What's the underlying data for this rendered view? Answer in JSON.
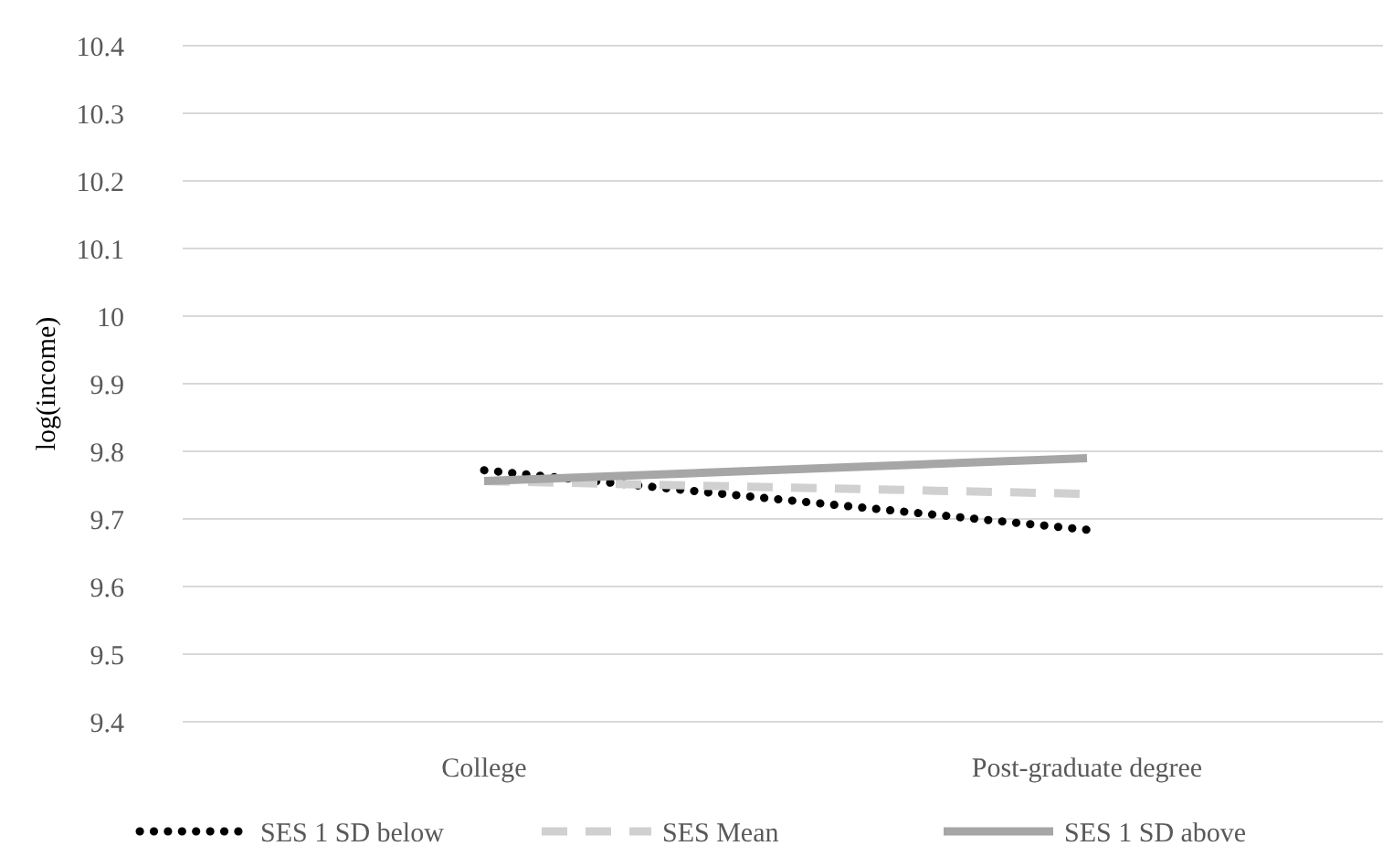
{
  "chart_data": {
    "type": "line",
    "ylabel": "log(income)",
    "categories": [
      "College",
      "Post-graduate degree"
    ],
    "series": [
      {
        "name": "SES 1 SD below",
        "color": "#000000",
        "line_style": "dotted",
        "values": [
          9.772,
          9.684
        ]
      },
      {
        "name": "SES Mean",
        "color": "#d0d0d0",
        "line_style": "dashed",
        "values": [
          9.756,
          9.737
        ]
      },
      {
        "name": "SES 1 SD above",
        "color": "#a6a6a6",
        "line_style": "solid",
        "values": [
          9.756,
          9.79
        ]
      }
    ],
    "ylim": [
      9.4,
      10.4
    ],
    "yticks": [
      9.4,
      9.5,
      9.6,
      9.7,
      9.8,
      9.9,
      10,
      10.1,
      10.2,
      10.3,
      10.4
    ],
    "grid": "y",
    "legend": "bottom",
    "marker": "none"
  }
}
